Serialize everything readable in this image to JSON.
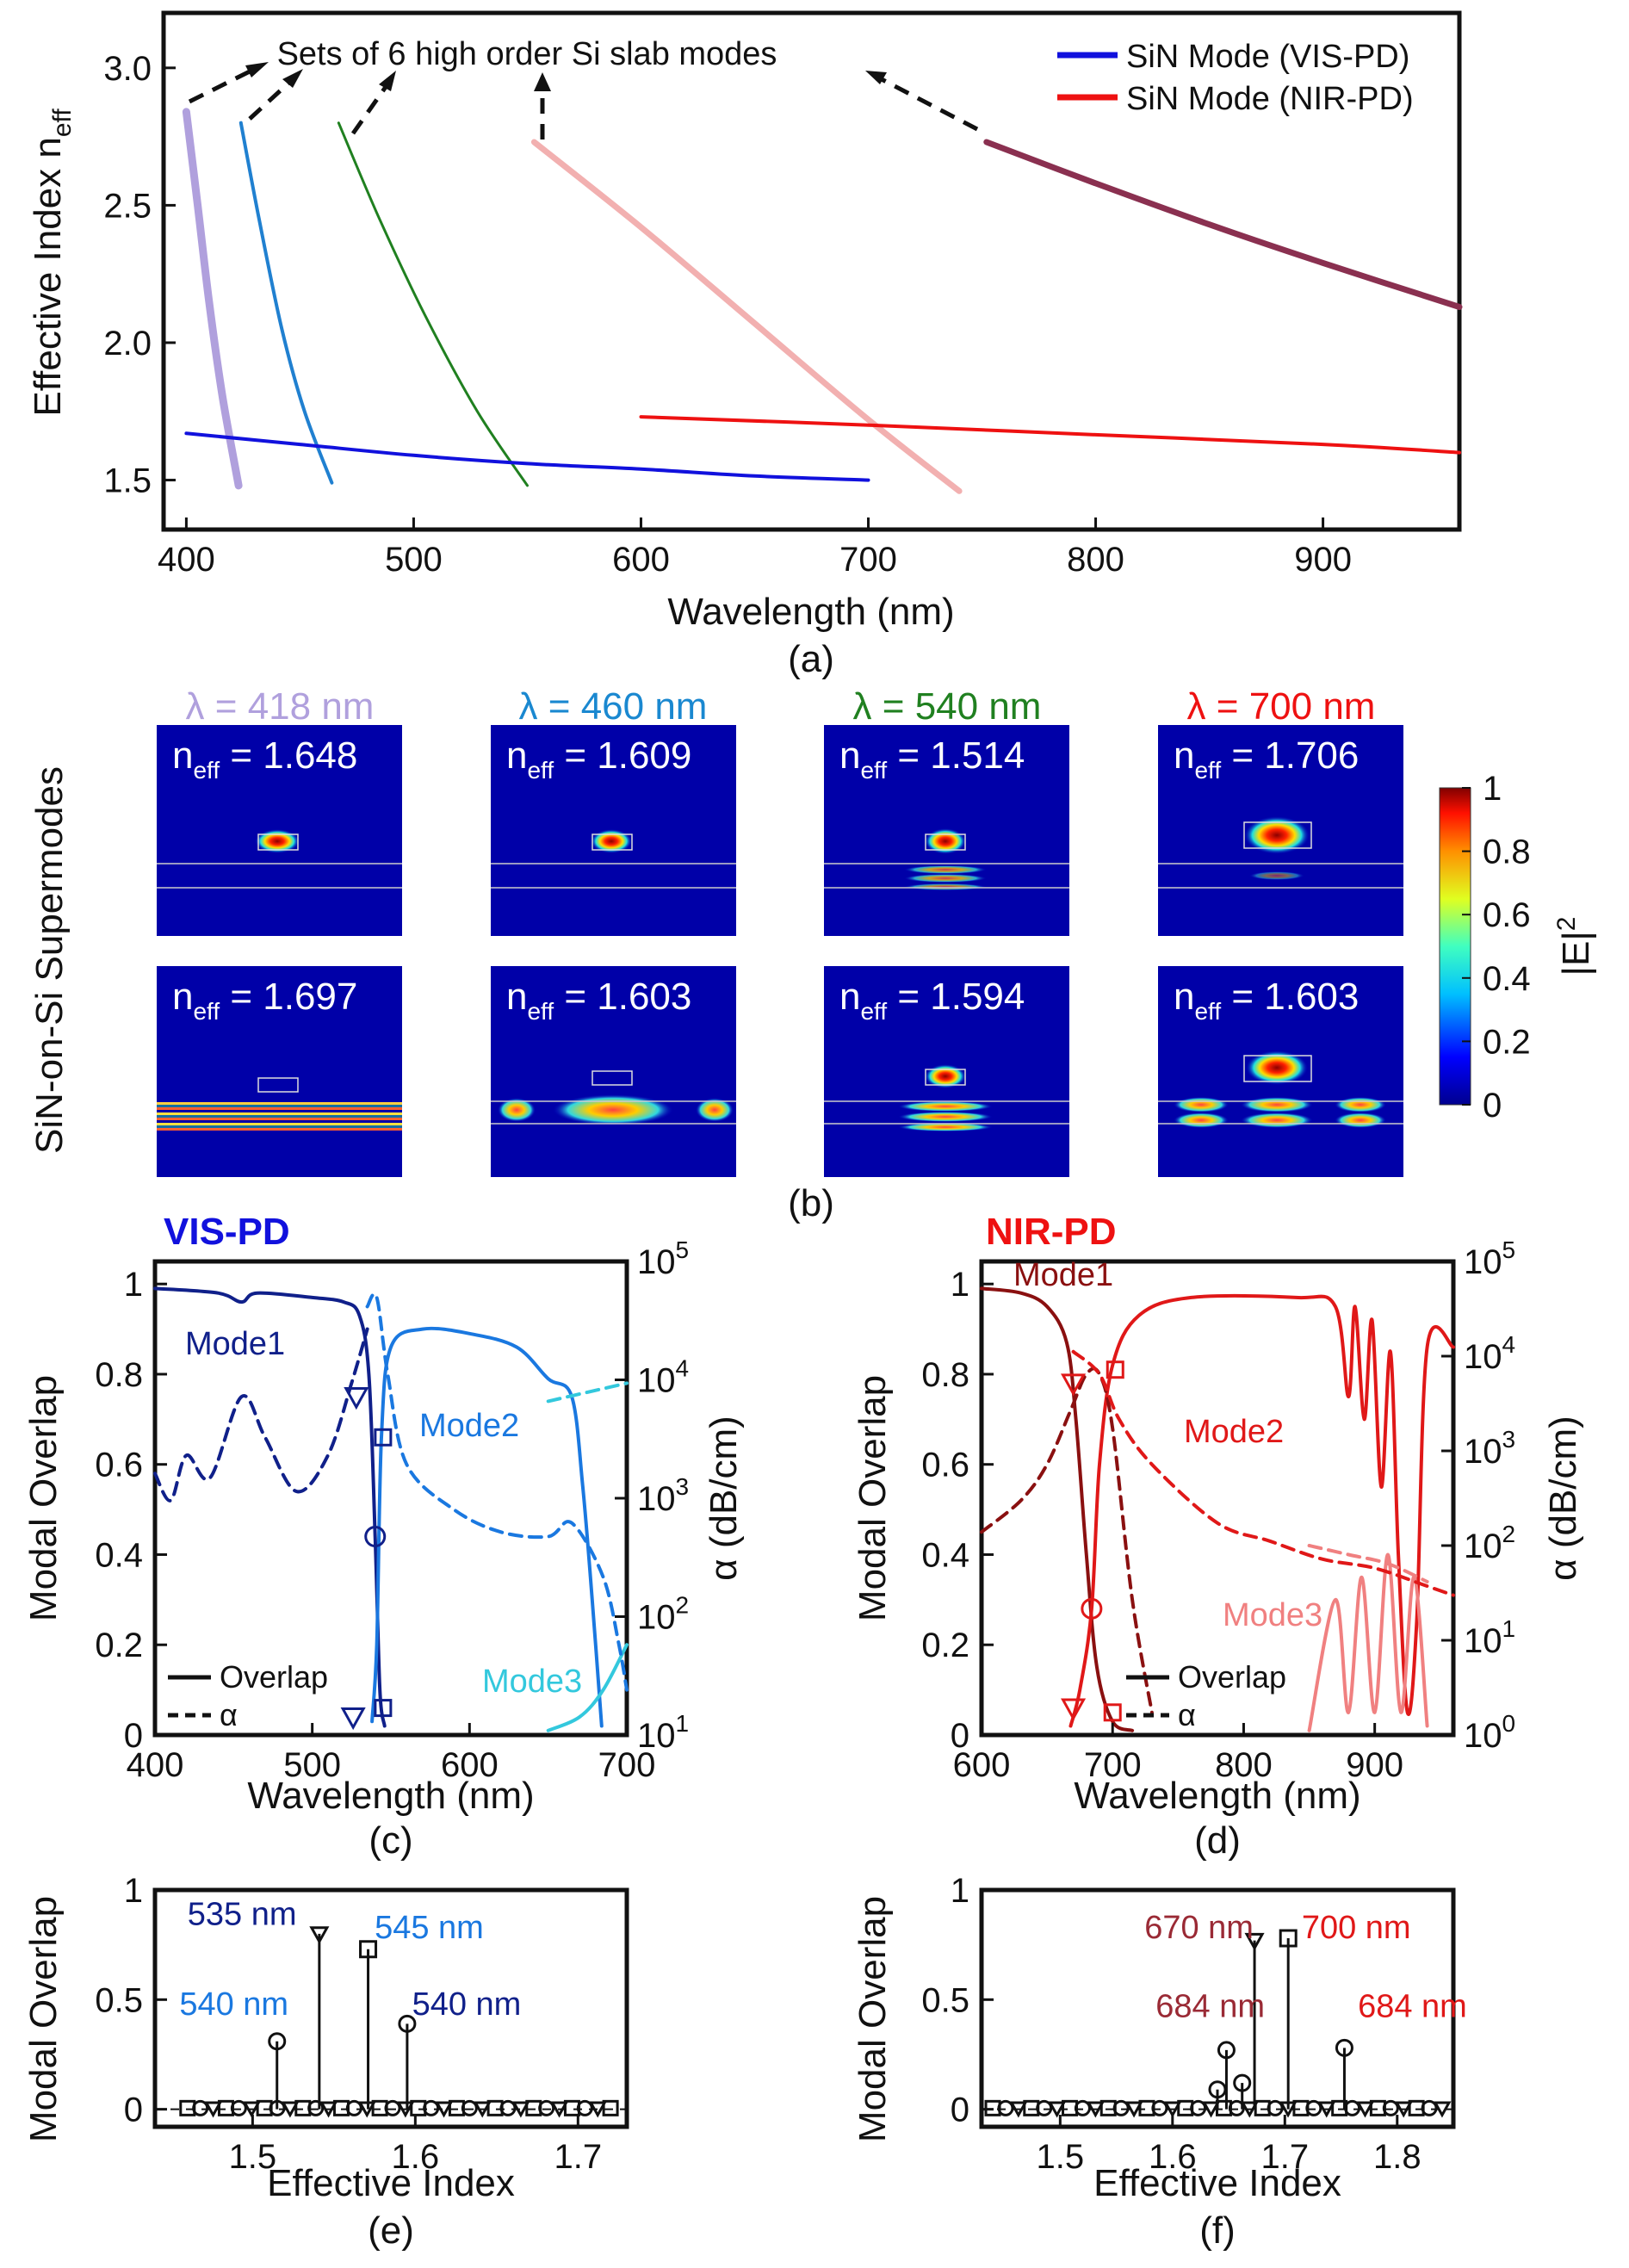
{
  "chart_data": [
    {
      "id": "a",
      "type": "line",
      "caption": "(a)",
      "xlabel": "Wavelength (nm)",
      "ylabel": "Effective Index n",
      "ylabel_sub": "eff",
      "xlim": [
        390,
        960
      ],
      "ylim": [
        1.32,
        3.2
      ],
      "xticks": [
        "400",
        "500",
        "600",
        "700",
        "800",
        "900"
      ],
      "yticks": [
        "1.5",
        "2.0",
        "2.5",
        "3.0"
      ],
      "annotation": "Sets of 6 high order Si slab modes",
      "legend": [
        {
          "label": "SiN Mode (VIS-PD)",
          "color": "#1111dd"
        },
        {
          "label": "SiN Mode (NIR-PD)",
          "color": "#ee1111"
        }
      ],
      "series": [
        {
          "name": "Si slab set 1",
          "color": "#b0a0dd",
          "width": 9,
          "points": [
            [
              400,
              2.84
            ],
            [
              405,
              2.5
            ],
            [
              410,
              2.15
            ],
            [
              416,
              1.8
            ],
            [
              423,
              1.48
            ]
          ]
        },
        {
          "name": "Si slab set 2",
          "color": "#2080d0",
          "width": 4,
          "points": [
            [
              424,
              2.8
            ],
            [
              432,
              2.45
            ],
            [
              442,
              2.05
            ],
            [
              452,
              1.75
            ],
            [
              464,
              1.49
            ]
          ]
        },
        {
          "name": "Si slab set 3",
          "color": "#208020",
          "width": 3,
          "points": [
            [
              467,
              2.8
            ],
            [
              485,
              2.45
            ],
            [
              505,
              2.1
            ],
            [
              528,
              1.75
            ],
            [
              550,
              1.48
            ]
          ]
        },
        {
          "name": "Si slab set 4",
          "color": "#f2b0b0",
          "width": 7,
          "points": [
            [
              553,
              2.73
            ],
            [
              600,
              2.42
            ],
            [
              650,
              2.07
            ],
            [
              700,
              1.72
            ],
            [
              740,
              1.46
            ]
          ]
        },
        {
          "name": "Si slab set 5",
          "color": "#8a3050",
          "width": 7,
          "points": [
            [
              752,
              2.73
            ],
            [
              800,
              2.58
            ],
            [
              850,
              2.43
            ],
            [
              900,
              2.29
            ],
            [
              960,
              2.13
            ]
          ]
        },
        {
          "name": "SiN Mode (VIS-PD)",
          "color": "#1111dd",
          "width": 4,
          "points": [
            [
              400,
              1.67
            ],
            [
              450,
              1.63
            ],
            [
              500,
              1.59
            ],
            [
              550,
              1.56
            ],
            [
              600,
              1.54
            ],
            [
              650,
              1.515
            ],
            [
              700,
              1.5
            ]
          ]
        },
        {
          "name": "SiN Mode (NIR-PD)",
          "color": "#ee1111",
          "width": 4,
          "points": [
            [
              600,
              1.73
            ],
            [
              700,
              1.7
            ],
            [
              800,
              1.665
            ],
            [
              900,
              1.63
            ],
            [
              960,
              1.6
            ]
          ]
        }
      ]
    },
    {
      "id": "c",
      "type": "line",
      "caption": "(c)",
      "panel_title": "VIS-PD",
      "xlabel": "Wavelength (nm)",
      "ylabel": "Modal Overlap",
      "ylabel_right": "α (dB/cm)",
      "xlim": [
        400,
        700
      ],
      "ylim": [
        0,
        1.05
      ],
      "xticks": [
        "400",
        "500",
        "600",
        "700"
      ],
      "yticks": [
        "0",
        "0.2",
        "0.4",
        "0.6",
        "0.8",
        "1"
      ],
      "yticks_right": [
        "10",
        "10",
        "10",
        "10",
        "10"
      ],
      "yticks_right_exp": [
        "1",
        "2",
        "3",
        "4",
        "5"
      ],
      "mode_labels": [
        "Mode1",
        "Mode2",
        "Mode3"
      ],
      "legend": [
        "Overlap",
        "α"
      ],
      "series": [
        {
          "name": "Mode1 overlap",
          "color": "#10208a",
          "dash": false,
          "points": [
            [
              400,
              0.99
            ],
            [
              440,
              0.98
            ],
            [
              455,
              0.96
            ],
            [
              465,
              0.98
            ],
            [
              500,
              0.97
            ],
            [
              520,
              0.96
            ],
            [
              530,
              0.93
            ],
            [
              536,
              0.8
            ],
            [
              540,
              0.44
            ],
            [
              543,
              0.1
            ],
            [
              546,
              0.02
            ]
          ]
        },
        {
          "name": "Mode2 overlap",
          "color": "#1a78e0",
          "dash": false,
          "points": [
            [
              538,
              0.03
            ],
            [
              541,
              0.2
            ],
            [
              544,
              0.66
            ],
            [
              550,
              0.86
            ],
            [
              570,
              0.9
            ],
            [
              600,
              0.89
            ],
            [
              630,
              0.86
            ],
            [
              650,
              0.79
            ],
            [
              665,
              0.75
            ],
            [
              672,
              0.55
            ],
            [
              678,
              0.3
            ],
            [
              684,
              0.02
            ]
          ]
        },
        {
          "name": "Mode3 overlap",
          "color": "#33c8dd",
          "dash": false,
          "points": [
            [
              650,
              0.01
            ],
            [
              670,
              0.04
            ],
            [
              685,
              0.1
            ],
            [
              700,
              0.2
            ]
          ]
        },
        {
          "name": "Mode1 α",
          "color": "#10208a",
          "dash": true,
          "points": [
            [
              400,
              0.58
            ],
            [
              410,
              0.52
            ],
            [
              420,
              0.62
            ],
            [
              435,
              0.57
            ],
            [
              455,
              0.75
            ],
            [
              470,
              0.66
            ],
            [
              490,
              0.54
            ],
            [
              510,
              0.62
            ],
            [
              525,
              0.78
            ],
            [
              535,
              0.9
            ]
          ]
        },
        {
          "name": "Mode2 α",
          "color": "#1a78e0",
          "dash": true,
          "points": [
            [
              535,
              0.95
            ],
            [
              541,
              0.97
            ],
            [
              548,
              0.8
            ],
            [
              560,
              0.6
            ],
            [
              590,
              0.5
            ],
            [
              620,
              0.45
            ],
            [
              650,
              0.44
            ],
            [
              665,
              0.47
            ],
            [
              685,
              0.35
            ],
            [
              695,
              0.2
            ],
            [
              700,
              0.1
            ]
          ]
        },
        {
          "name": "Mode3 α",
          "color": "#33c8dd",
          "dash": true,
          "points": [
            [
              650,
              0.74
            ],
            [
              675,
              0.76
            ],
            [
              700,
              0.78
            ]
          ]
        }
      ]
    },
    {
      "id": "d",
      "type": "line",
      "caption": "(d)",
      "panel_title": "NIR-PD",
      "xlabel": "Wavelength (nm)",
      "ylabel": "Modal Overlap",
      "ylabel_right": "α (dB/cm)",
      "xlim": [
        600,
        960
      ],
      "ylim": [
        0,
        1.05
      ],
      "xticks": [
        "600",
        "700",
        "800",
        "900"
      ],
      "yticks": [
        "0",
        "0.2",
        "0.4",
        "0.6",
        "0.8",
        "1"
      ],
      "yticks_right": [
        "10",
        "10",
        "10",
        "10",
        "10",
        "10"
      ],
      "yticks_right_exp": [
        "0",
        "1",
        "2",
        "3",
        "4",
        "5"
      ],
      "mode_labels": [
        "Mode1",
        "Mode2",
        "Mode3"
      ],
      "legend": [
        "Overlap",
        "α"
      ],
      "series": [
        {
          "name": "Mode1 overlap",
          "color": "#8a1010",
          "dash": false,
          "points": [
            [
              600,
              0.99
            ],
            [
              630,
              0.98
            ],
            [
              650,
              0.95
            ],
            [
              665,
              0.87
            ],
            [
              672,
              0.7
            ],
            [
              680,
              0.4
            ],
            [
              688,
              0.15
            ],
            [
              700,
              0.03
            ],
            [
              715,
              0.01
            ]
          ]
        },
        {
          "name": "Mode2 overlap",
          "color": "#e01818",
          "dash": false,
          "points": [
            [
              668,
              0.02
            ],
            [
              675,
              0.1
            ],
            [
              684,
              0.28
            ],
            [
              690,
              0.6
            ],
            [
              700,
              0.82
            ],
            [
              720,
              0.93
            ],
            [
              760,
              0.97
            ],
            [
              840,
              0.97
            ],
            [
              870,
              0.95
            ],
            [
              880,
              0.75
            ],
            [
              885,
              0.95
            ],
            [
              892,
              0.7
            ],
            [
              898,
              0.92
            ],
            [
              905,
              0.55
            ],
            [
              912,
              0.85
            ],
            [
              918,
              0.4
            ],
            [
              925,
              0.05
            ],
            [
              932,
              0.25
            ],
            [
              940,
              0.86
            ],
            [
              960,
              0.86
            ]
          ]
        },
        {
          "name": "Mode3 overlap",
          "color": "#f08080",
          "dash": false,
          "points": [
            [
              850,
              0.01
            ],
            [
              870,
              0.3
            ],
            [
              880,
              0.05
            ],
            [
              890,
              0.35
            ],
            [
              900,
              0.05
            ],
            [
              910,
              0.4
            ],
            [
              920,
              0.05
            ],
            [
              930,
              0.35
            ],
            [
              940,
              0.02
            ]
          ]
        },
        {
          "name": "Mode1 α",
          "color": "#8a1010",
          "dash": true,
          "points": [
            [
              600,
              0.45
            ],
            [
              630,
              0.52
            ],
            [
              650,
              0.6
            ],
            [
              668,
              0.72
            ],
            [
              680,
              0.8
            ],
            [
              690,
              0.8
            ],
            [
              700,
              0.68
            ],
            [
              715,
              0.3
            ],
            [
              730,
              0.05
            ]
          ]
        },
        {
          "name": "Mode2 α",
          "color": "#e01818",
          "dash": true,
          "points": [
            [
              670,
              0.85
            ],
            [
              690,
              0.8
            ],
            [
              705,
              0.7
            ],
            [
              730,
              0.6
            ],
            [
              780,
              0.47
            ],
            [
              820,
              0.43
            ],
            [
              860,
              0.39
            ],
            [
              900,
              0.37
            ],
            [
              940,
              0.33
            ],
            [
              960,
              0.31
            ]
          ]
        },
        {
          "name": "Mode3 α",
          "color": "#f08080",
          "dash": true,
          "points": [
            [
              850,
              0.42
            ],
            [
              880,
              0.4
            ],
            [
              910,
              0.38
            ],
            [
              940,
              0.34
            ]
          ]
        }
      ]
    },
    {
      "id": "e",
      "type": "scatter",
      "caption": "(e)",
      "xlabel": "Effective Index",
      "ylabel": "Modal Overlap",
      "xlim": [
        1.44,
        1.73
      ],
      "ylim": [
        -0.08,
        1.0
      ],
      "xticks": [
        "1.5",
        "1.6",
        "1.7"
      ],
      "yticks": [
        "0",
        "0.5",
        "1"
      ],
      "annotations": [
        {
          "text": "535 nm",
          "color": "#10208a",
          "x": 1.46,
          "y": 0.84
        },
        {
          "text": "545 nm",
          "color": "#1a78e0",
          "x": 1.575,
          "y": 0.78
        },
        {
          "text": "540 nm",
          "color": "#1a78e0",
          "x": 1.455,
          "y": 0.43
        },
        {
          "text": "540 nm",
          "color": "#10208a",
          "x": 1.598,
          "y": 0.43
        }
      ],
      "stems": [
        {
          "x": 1.515,
          "y": 0.31,
          "marker": "circle"
        },
        {
          "x": 1.541,
          "y": 0.8,
          "marker": "triangle"
        },
        {
          "x": 1.571,
          "y": 0.73,
          "marker": "square"
        },
        {
          "x": 1.595,
          "y": 0.39,
          "marker": "circle"
        }
      ],
      "baseline_markers": {
        "x_start": 1.46,
        "x_end": 1.72,
        "count": 34
      }
    },
    {
      "id": "f",
      "type": "scatter",
      "caption": "(f)",
      "xlabel": "Effective Index",
      "ylabel": "Modal Overlap",
      "xlim": [
        1.43,
        1.85
      ],
      "ylim": [
        -0.08,
        1.0
      ],
      "xticks": [
        "1.5",
        "1.6",
        "1.7",
        "1.8"
      ],
      "yticks": [
        "0",
        "0.5",
        "1"
      ],
      "annotations": [
        {
          "text": "670 nm",
          "color": "#9a2a35",
          "x": 1.575,
          "y": 0.78
        },
        {
          "text": "700 nm",
          "color": "#e01818",
          "x": 1.715,
          "y": 0.78
        },
        {
          "text": "684 nm",
          "color": "#9a2a35",
          "x": 1.585,
          "y": 0.42
        },
        {
          "text": "684 nm",
          "color": "#e01818",
          "x": 1.765,
          "y": 0.42
        }
      ],
      "stems": [
        {
          "x": 1.648,
          "y": 0.27,
          "marker": "circle"
        },
        {
          "x": 1.673,
          "y": 0.77,
          "marker": "triangle"
        },
        {
          "x": 1.703,
          "y": 0.78,
          "marker": "square"
        },
        {
          "x": 1.753,
          "y": 0.28,
          "marker": "circle"
        },
        {
          "x": 1.64,
          "y": 0.09,
          "marker": "circle"
        },
        {
          "x": 1.662,
          "y": 0.12,
          "marker": "circle"
        }
      ],
      "baseline_markers": {
        "x_start": 1.44,
        "x_end": 1.84,
        "count": 36
      }
    }
  ],
  "panel_b": {
    "caption": "(b)",
    "side_label": "SiN-on-Si Supermodes",
    "colorbar_label": "|E|",
    "colorbar_label_exp": "2",
    "colorbar_ticks": [
      "0",
      "0.2",
      "0.4",
      "0.6",
      "0.8",
      "1"
    ],
    "columns": [
      {
        "title": "λ = 418 nm",
        "color": "#b0a0dd",
        "neff_top": "1.648",
        "neff_bottom": "1.697"
      },
      {
        "title": "λ = 460 nm",
        "color": "#1a88d0",
        "neff_top": "1.609",
        "neff_bottom": "1.603"
      },
      {
        "title": "λ = 540 nm",
        "color": "#208020",
        "neff_top": "1.514",
        "neff_bottom": "1.594"
      },
      {
        "title": "λ = 700 nm",
        "color": "#ee1111",
        "neff_top": "1.706",
        "neff_bottom": "1.603"
      }
    ],
    "neff_prefix": "n",
    "neff_sub": "eff",
    "neff_eq": " = "
  }
}
